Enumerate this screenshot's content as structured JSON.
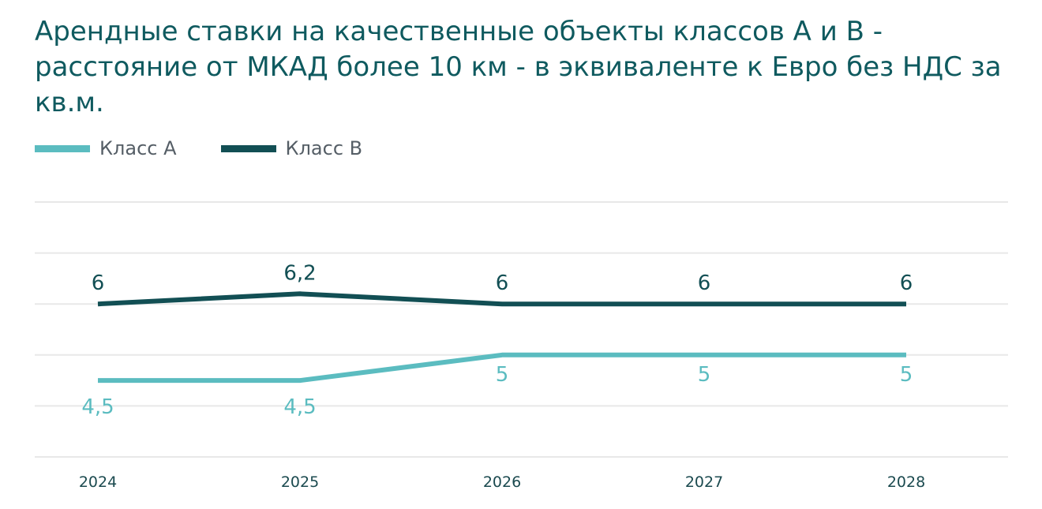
{
  "chart_data": {
    "type": "line",
    "title": "Арендные ставки на качественные объекты классов А и В - расстояние от МКАД более 10 км - в эквиваленте к Евро без НДС за кв.м.",
    "categories": [
      "2024",
      "2025",
      "2026",
      "2027",
      "2028"
    ],
    "series": [
      {
        "name": "Класс А",
        "values": [
          4.5,
          4.5,
          5,
          5,
          5
        ],
        "labels": [
          "4,5",
          "4,5",
          "5",
          "5",
          "5"
        ],
        "color": "#5bbcc0",
        "label_position": "below"
      },
      {
        "name": "Класс В",
        "values": [
          6,
          6.2,
          6,
          6,
          6
        ],
        "labels": [
          "6",
          "6,2",
          "6",
          "6",
          "6"
        ],
        "color": "#124f54",
        "label_position": "above"
      }
    ],
    "ylim": [
      3,
      8
    ],
    "y_gridlines": [
      3,
      4,
      5,
      6,
      7,
      8
    ],
    "grid": true,
    "legend_position": "top-left",
    "gridline_color": "#e8e8e8",
    "tick_label_color": "#1b4a4f"
  }
}
